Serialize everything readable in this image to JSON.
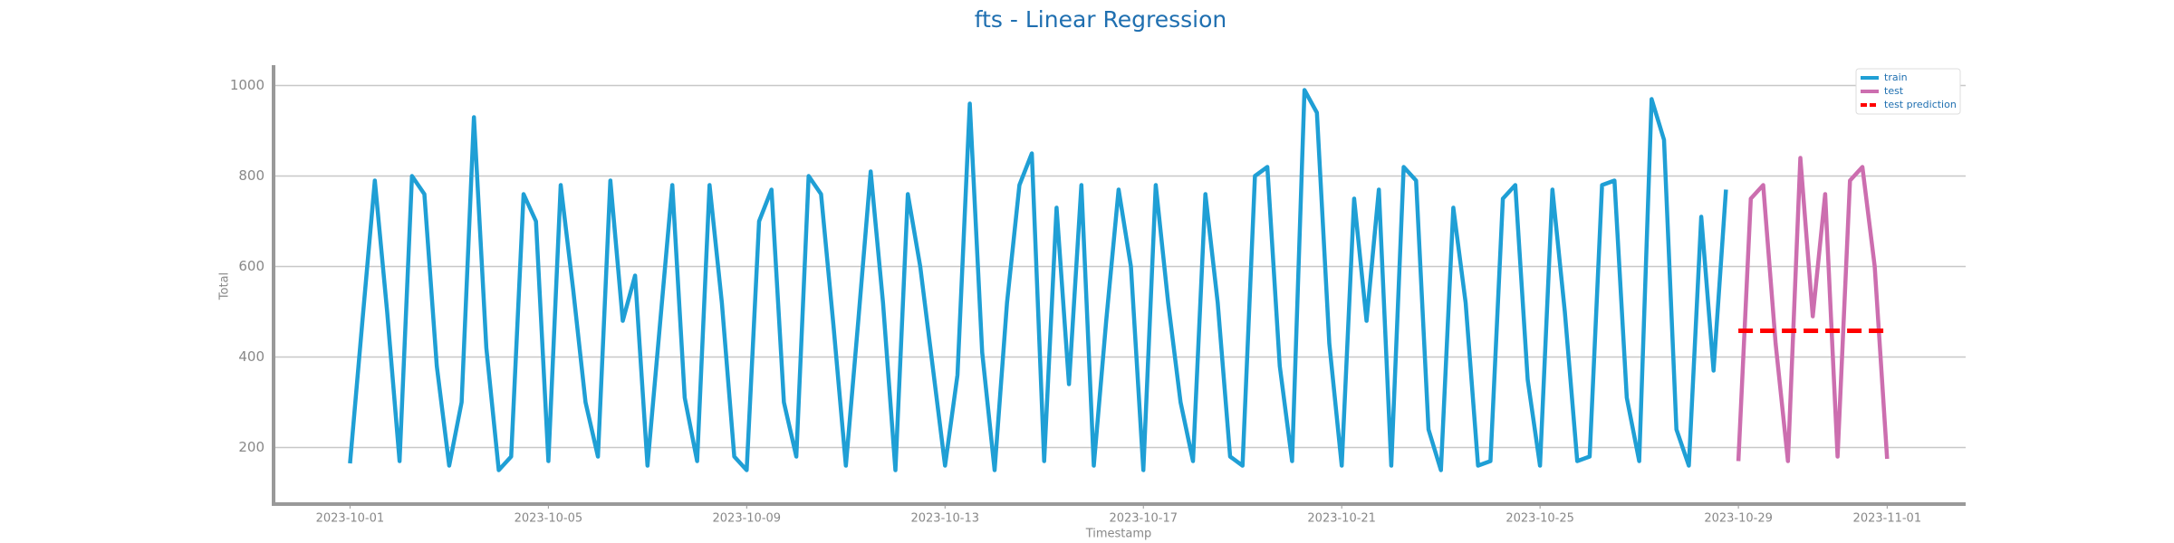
{
  "chart_data": {
    "type": "line",
    "title": "fts - Linear Regression",
    "x_label": "Timestamp",
    "y_label": "Total",
    "xlim": [
      "2023-09-29T11:00",
      "2023-11-02T14:00"
    ],
    "xticks": [
      "2023-10-01",
      "2023-10-05",
      "2023-10-09",
      "2023-10-13",
      "2023-10-17",
      "2023-10-21",
      "2023-10-25",
      "2023-10-29",
      "2023-11-01"
    ],
    "ylim": [
      75,
      1045
    ],
    "yticks": [
      200,
      400,
      600,
      800,
      1000
    ],
    "grid": true,
    "legend": "upper right",
    "series": [
      {
        "name": "train",
        "color": "#1f9fd5",
        "dash": false,
        "x": [
          "2023-10-01T00:00",
          "2023-10-01T06:00",
          "2023-10-01T12:00",
          "2023-10-01T18:00",
          "2023-10-02T00:00",
          "2023-10-02T06:00",
          "2023-10-02T12:00",
          "2023-10-02T18:00",
          "2023-10-03T00:00",
          "2023-10-03T06:00",
          "2023-10-03T12:00",
          "2023-10-03T18:00",
          "2023-10-04T00:00",
          "2023-10-04T06:00",
          "2023-10-04T12:00",
          "2023-10-04T18:00",
          "2023-10-05T00:00",
          "2023-10-05T06:00",
          "2023-10-05T12:00",
          "2023-10-05T18:00",
          "2023-10-06T00:00",
          "2023-10-06T06:00",
          "2023-10-06T12:00",
          "2023-10-06T18:00",
          "2023-10-07T00:00",
          "2023-10-07T06:00",
          "2023-10-07T12:00",
          "2023-10-07T18:00",
          "2023-10-08T00:00",
          "2023-10-08T06:00",
          "2023-10-08T12:00",
          "2023-10-08T18:00",
          "2023-10-09T00:00",
          "2023-10-09T06:00",
          "2023-10-09T12:00",
          "2023-10-09T18:00",
          "2023-10-10T00:00",
          "2023-10-10T06:00",
          "2023-10-10T12:00",
          "2023-10-10T18:00",
          "2023-10-11T00:00",
          "2023-10-11T06:00",
          "2023-10-11T12:00",
          "2023-10-11T18:00",
          "2023-10-12T00:00",
          "2023-10-12T06:00",
          "2023-10-12T12:00",
          "2023-10-12T18:00",
          "2023-10-13T00:00",
          "2023-10-13T06:00",
          "2023-10-13T12:00",
          "2023-10-13T18:00",
          "2023-10-14T00:00",
          "2023-10-14T06:00",
          "2023-10-14T12:00",
          "2023-10-14T18:00",
          "2023-10-15T00:00",
          "2023-10-15T06:00",
          "2023-10-15T12:00",
          "2023-10-15T18:00",
          "2023-10-16T00:00",
          "2023-10-16T06:00",
          "2023-10-16T12:00",
          "2023-10-16T18:00",
          "2023-10-17T00:00",
          "2023-10-17T06:00",
          "2023-10-17T12:00",
          "2023-10-17T18:00",
          "2023-10-18T00:00",
          "2023-10-18T06:00",
          "2023-10-18T12:00",
          "2023-10-18T18:00",
          "2023-10-19T00:00",
          "2023-10-19T06:00",
          "2023-10-19T12:00",
          "2023-10-19T18:00",
          "2023-10-20T00:00",
          "2023-10-20T06:00",
          "2023-10-20T12:00",
          "2023-10-20T18:00",
          "2023-10-21T00:00",
          "2023-10-21T06:00",
          "2023-10-21T12:00",
          "2023-10-21T18:00",
          "2023-10-22T00:00",
          "2023-10-22T06:00",
          "2023-10-22T12:00",
          "2023-10-22T18:00",
          "2023-10-23T00:00",
          "2023-10-23T06:00",
          "2023-10-23T12:00",
          "2023-10-23T18:00",
          "2023-10-24T00:00",
          "2023-10-24T06:00",
          "2023-10-24T12:00",
          "2023-10-24T18:00",
          "2023-10-25T00:00",
          "2023-10-25T06:00",
          "2023-10-25T12:00",
          "2023-10-25T18:00",
          "2023-10-26T00:00",
          "2023-10-26T06:00",
          "2023-10-26T12:00",
          "2023-10-26T18:00",
          "2023-10-27T00:00",
          "2023-10-27T06:00",
          "2023-10-27T12:00",
          "2023-10-27T18:00",
          "2023-10-28T00:00",
          "2023-10-28T06:00",
          "2023-10-28T12:00",
          "2023-10-28T18:00"
        ],
        "values": [
          165,
          480,
          790,
          500,
          170,
          800,
          760,
          380,
          160,
          300,
          930,
          420,
          150,
          180,
          760,
          700,
          170,
          780,
          550,
          300,
          180,
          790,
          480,
          580,
          160,
          470,
          780,
          310,
          170,
          780,
          520,
          180,
          150,
          700,
          770,
          300,
          180,
          800,
          760,
          470,
          160,
          480,
          810,
          520,
          150,
          760,
          600,
          380,
          160,
          360,
          960,
          410,
          150,
          520,
          780,
          850,
          170,
          730,
          340,
          780,
          160,
          480,
          770,
          600,
          150,
          780,
          520,
          300,
          170,
          760,
          520,
          180,
          160,
          800,
          820,
          380,
          170,
          990,
          940,
          430,
          160,
          750,
          480,
          770,
          160,
          820,
          790,
          240,
          150,
          730,
          520,
          160,
          170,
          750,
          780,
          350,
          160,
          770,
          500,
          170,
          180,
          780,
          790,
          310,
          170,
          970,
          880,
          240,
          160,
          710,
          370,
          770
        ]
      },
      {
        "name": "test",
        "color": "#cc6eaf",
        "dash": false,
        "x": [
          "2023-10-29T00:00",
          "2023-10-29T06:00",
          "2023-10-29T12:00",
          "2023-10-29T18:00",
          "2023-10-30T00:00",
          "2023-10-30T06:00",
          "2023-10-30T12:00",
          "2023-10-30T18:00",
          "2023-10-31T00:00",
          "2023-10-31T06:00",
          "2023-10-31T12:00",
          "2023-10-31T18:00",
          "2023-11-01T00:00"
        ],
        "values": [
          170,
          750,
          780,
          430,
          170,
          840,
          490,
          760,
          180,
          790,
          820,
          600,
          175
        ]
      },
      {
        "name": "test prediction",
        "color": "#ff0000",
        "dash": true,
        "x": [
          "2023-10-29T00:00",
          "2023-11-01T00:00"
        ],
        "values": [
          458,
          458
        ]
      }
    ]
  }
}
